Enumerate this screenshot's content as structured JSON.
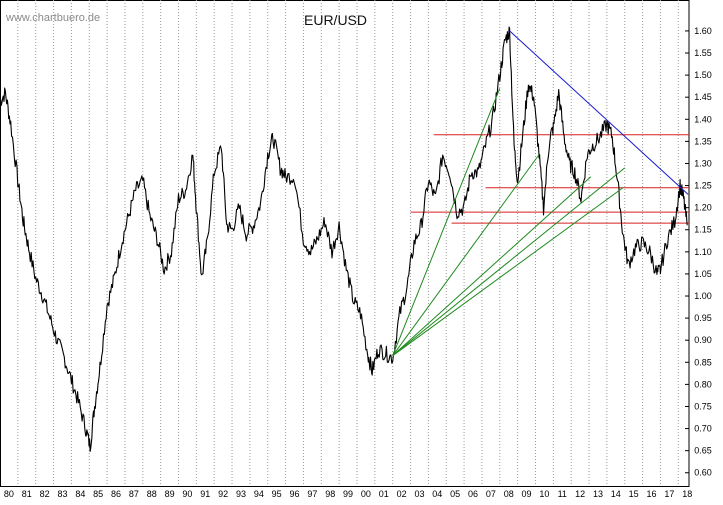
{
  "watermark": "www.chartbuero.de",
  "chart_data": {
    "type": "line",
    "title": "EUR/USD",
    "xlabel": "",
    "ylabel": "",
    "x_tick_labels": [
      "80",
      "81",
      "82",
      "83",
      "84",
      "85",
      "86",
      "87",
      "88",
      "89",
      "90",
      "91",
      "92",
      "93",
      "94",
      "95",
      "96",
      "97",
      "98",
      "99",
      "00",
      "01",
      "02",
      "03",
      "04",
      "05",
      "06",
      "07",
      "08",
      "09",
      "10",
      "11",
      "12",
      "13",
      "14",
      "15",
      "16",
      "17",
      "18"
    ],
    "xlim": [
      1980.0,
      2018.6
    ],
    "y_ticks": [
      "0.60",
      "0.65",
      "0.70",
      "0.75",
      "0.80",
      "0.85",
      "0.90",
      "0.95",
      "1.00",
      "1.05",
      "1.10",
      "1.15",
      "1.20",
      "1.25",
      "1.30",
      "1.35",
      "1.40",
      "1.45",
      "1.50",
      "1.55",
      "1.60"
    ],
    "ylim": [
      0.57,
      1.67
    ],
    "grid": "vertical dotted",
    "series": [
      {
        "type": "line",
        "color": "#000000",
        "x": [
          1980.0,
          1980.3,
          1980.6,
          1981.0,
          1981.3,
          1981.6,
          1982.0,
          1982.4,
          1982.8,
          1983.2,
          1983.6,
          1984.0,
          1984.4,
          1984.8,
          1985.05,
          1985.3,
          1985.6,
          1986.0,
          1986.4,
          1986.8,
          1987.2,
          1987.6,
          1988.0,
          1988.4,
          1988.8,
          1989.2,
          1989.6,
          1990.0,
          1990.4,
          1990.8,
          1991.0,
          1991.3,
          1991.6,
          1992.0,
          1992.4,
          1992.7,
          1993.0,
          1993.4,
          1993.8,
          1994.2,
          1994.6,
          1995.0,
          1995.3,
          1995.7,
          1996.0,
          1996.5,
          1997.0,
          1997.4,
          1997.8,
          1998.2,
          1998.6,
          1999.0,
          1999.4,
          1999.8,
          2000.2,
          2000.6,
          2000.85,
          2001.2,
          2001.6,
          2002.0,
          2002.4,
          2002.8,
          2003.2,
          2003.6,
          2004.0,
          2004.4,
          2004.8,
          2005.2,
          2005.6,
          2006.0,
          2006.4,
          2006.8,
          2007.2,
          2007.6,
          2008.0,
          2008.3,
          2008.55,
          2008.8,
          2009.0,
          2009.3,
          2009.6,
          2009.9,
          2010.2,
          2010.45,
          2010.8,
          2011.0,
          2011.3,
          2011.6,
          2011.9,
          2012.2,
          2012.55,
          2012.9,
          2013.2,
          2013.6,
          2014.0,
          2014.3,
          2014.6,
          2014.9,
          2015.2,
          2015.6,
          2016.0,
          2016.4,
          2016.8,
          2017.0,
          2017.4,
          2017.8,
          2018.1,
          2018.3,
          2018.5
        ],
        "y": [
          1.44,
          1.46,
          1.39,
          1.26,
          1.17,
          1.11,
          1.04,
          1.0,
          0.95,
          0.9,
          0.86,
          0.81,
          0.76,
          0.7,
          0.66,
          0.75,
          0.84,
          0.98,
          1.04,
          1.12,
          1.18,
          1.24,
          1.26,
          1.18,
          1.13,
          1.06,
          1.1,
          1.22,
          1.24,
          1.32,
          1.2,
          1.04,
          1.12,
          1.28,
          1.34,
          1.16,
          1.15,
          1.2,
          1.14,
          1.16,
          1.21,
          1.32,
          1.36,
          1.29,
          1.27,
          1.27,
          1.13,
          1.1,
          1.13,
          1.17,
          1.1,
          1.16,
          1.06,
          0.99,
          0.96,
          0.87,
          0.83,
          0.88,
          0.87,
          0.86,
          0.96,
          1.02,
          1.12,
          1.16,
          1.26,
          1.22,
          1.32,
          1.28,
          1.19,
          1.2,
          1.28,
          1.28,
          1.34,
          1.4,
          1.5,
          1.58,
          1.6,
          1.34,
          1.26,
          1.37,
          1.48,
          1.45,
          1.32,
          1.2,
          1.36,
          1.38,
          1.46,
          1.36,
          1.3,
          1.28,
          1.22,
          1.32,
          1.34,
          1.36,
          1.39,
          1.36,
          1.26,
          1.14,
          1.07,
          1.11,
          1.12,
          1.1,
          1.05,
          1.06,
          1.13,
          1.17,
          1.25,
          1.22,
          1.16
        ]
      }
    ],
    "trend_lines": [
      {
        "color": "#1a1ad4",
        "x": [
          2008.55,
          2018.55
        ],
        "y": [
          1.6,
          1.23
        ]
      },
      {
        "color": "#1e8a1e",
        "x": [
          2002.0,
          2008.0
        ],
        "y": [
          0.865,
          1.47
        ]
      },
      {
        "color": "#1e8a1e",
        "x": [
          2002.0,
          2010.2
        ],
        "y": [
          0.865,
          1.32
        ]
      },
      {
        "color": "#1e8a1e",
        "x": [
          2002.0,
          2013.1
        ],
        "y": [
          0.865,
          1.27
        ]
      },
      {
        "color": "#1e8a1e",
        "x": [
          2002.0,
          2015.0
        ],
        "y": [
          0.865,
          1.29
        ]
      },
      {
        "color": "#1e8a1e",
        "x": [
          2002.0,
          2014.9
        ],
        "y": [
          0.865,
          1.245
        ]
      }
    ],
    "horizontal_lines": [
      {
        "color": "#d82020",
        "y": 1.365,
        "x_from": 2004.3,
        "x_to": 2018.6
      },
      {
        "color": "#d82020",
        "y": 1.245,
        "x_from": 2007.2,
        "x_to": 2018.6
      },
      {
        "color": "#d82020",
        "y": 1.19,
        "x_from": 2003.0,
        "x_to": 2018.6
      },
      {
        "color": "#d82020",
        "y": 1.165,
        "x_from": 2005.3,
        "x_to": 2018.6
      }
    ]
  }
}
